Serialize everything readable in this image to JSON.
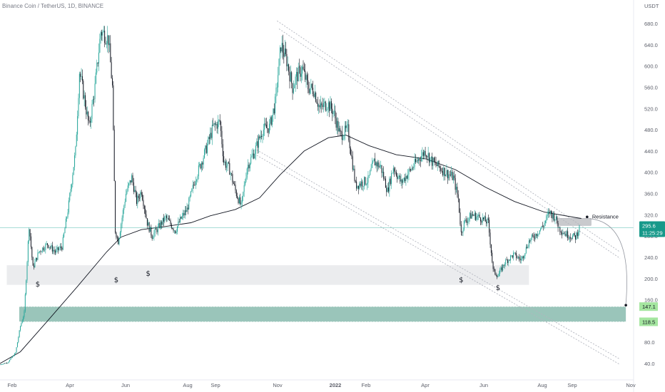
{
  "header": {
    "title": "Binance Coin / TetherUS, 1D, BINANCE"
  },
  "colors": {
    "up": "#26a69a",
    "down": "#131722",
    "ma": "#131722",
    "price_line": "#26a69a",
    "demand_zone": "#8fbfb3",
    "support_zone": "#e6e7ea",
    "resistance_box": "#c9cacd",
    "channel": "#b2b5be",
    "label_green": "#a5e6a0",
    "price_badge": "#17998a"
  },
  "chart_data": {
    "type": "candlestick",
    "title": "Binance Coin / TetherUS, 1D, BINANCE",
    "y_unit": "USDT",
    "ylim": [
      20,
      700
    ],
    "y_ticks": [
      "40.0",
      "80.0",
      "120.0",
      "160.0",
      "200.0",
      "240.0",
      "280.0",
      "320.0",
      "360.0",
      "400.0",
      "440.0",
      "480.0",
      "520.0",
      "560.0",
      "600.0",
      "640.0",
      "680.0"
    ],
    "x_ticks": [
      "Feb",
      "Apr",
      "Jun",
      "Aug",
      "Sep",
      "Nov",
      "2022",
      "Feb",
      "Apr",
      "Jun",
      "Aug",
      "Sep",
      "Nov"
    ],
    "x_range": [
      "2021-01-20",
      "2022-11-05"
    ],
    "price_path": [
      [
        "2021-01-20",
        38
      ],
      [
        "2021-01-28",
        42
      ],
      [
        "2021-02-05",
        60
      ],
      [
        "2021-02-10",
        110
      ],
      [
        "2021-02-14",
        135
      ],
      [
        "2021-02-19",
        300
      ],
      [
        "2021-02-23",
        220
      ],
      [
        "2021-03-01",
        250
      ],
      [
        "2021-03-10",
        265
      ],
      [
        "2021-03-18",
        250
      ],
      [
        "2021-03-25",
        260
      ],
      [
        "2021-04-01",
        340
      ],
      [
        "2021-04-05",
        400
      ],
      [
        "2021-04-08",
        440
      ],
      [
        "2021-04-12",
        590
      ],
      [
        "2021-04-16",
        550
      ],
      [
        "2021-04-22",
        485
      ],
      [
        "2021-04-28",
        560
      ],
      [
        "2021-05-04",
        665
      ],
      [
        "2021-05-08",
        660
      ],
      [
        "2021-05-12",
        650
      ],
      [
        "2021-05-16",
        560
      ],
      [
        "2021-05-19",
        290
      ],
      [
        "2021-05-22",
        270
      ],
      [
        "2021-05-30",
        360
      ],
      [
        "2021-06-05",
        390
      ],
      [
        "2021-06-10",
        345
      ],
      [
        "2021-06-15",
        365
      ],
      [
        "2021-06-21",
        305
      ],
      [
        "2021-06-26",
        280
      ],
      [
        "2021-07-02",
        295
      ],
      [
        "2021-07-10",
        315
      ],
      [
        "2021-07-20",
        290
      ],
      [
        "2021-07-25",
        310
      ],
      [
        "2021-08-01",
        330
      ],
      [
        "2021-08-10",
        390
      ],
      [
        "2021-08-20",
        440
      ],
      [
        "2021-08-28",
        485
      ],
      [
        "2021-09-04",
        495
      ],
      [
        "2021-09-08",
        420
      ],
      [
        "2021-09-14",
        405
      ],
      [
        "2021-09-20",
        365
      ],
      [
        "2021-09-26",
        335
      ],
      [
        "2021-10-02",
        410
      ],
      [
        "2021-10-10",
        440
      ],
      [
        "2021-10-18",
        480
      ],
      [
        "2021-10-25",
        485
      ],
      [
        "2021-10-31",
        530
      ],
      [
        "2021-11-06",
        640
      ],
      [
        "2021-11-12",
        610
      ],
      [
        "2021-11-18",
        560
      ],
      [
        "2021-11-22",
        580
      ],
      [
        "2021-11-28",
        595
      ],
      [
        "2021-12-04",
        560
      ],
      [
        "2021-12-10",
        555
      ],
      [
        "2021-12-16",
        520
      ],
      [
        "2021-12-24",
        530
      ],
      [
        "2021-12-30",
        515
      ],
      [
        "2022-01-06",
        470
      ],
      [
        "2022-01-14",
        480
      ],
      [
        "2022-01-22",
        375
      ],
      [
        "2022-01-28",
        380
      ],
      [
        "2022-02-04",
        385
      ],
      [
        "2022-02-10",
        420
      ],
      [
        "2022-02-17",
        410
      ],
      [
        "2022-02-24",
        365
      ],
      [
        "2022-03-02",
        410
      ],
      [
        "2022-03-10",
        380
      ],
      [
        "2022-03-18",
        400
      ],
      [
        "2022-03-28",
        425
      ],
      [
        "2022-04-04",
        440
      ],
      [
        "2022-04-11",
        420
      ],
      [
        "2022-04-18",
        410
      ],
      [
        "2022-04-25",
        400
      ],
      [
        "2022-05-03",
        390
      ],
      [
        "2022-05-08",
        350
      ],
      [
        "2022-05-11",
        285
      ],
      [
        "2022-05-14",
        305
      ],
      [
        "2022-05-22",
        320
      ],
      [
        "2022-05-30",
        315
      ],
      [
        "2022-06-08",
        305
      ],
      [
        "2022-06-13",
        215
      ],
      [
        "2022-06-18",
        205
      ],
      [
        "2022-06-25",
        230
      ],
      [
        "2022-07-04",
        245
      ],
      [
        "2022-07-12",
        235
      ],
      [
        "2022-07-20",
        270
      ],
      [
        "2022-07-28",
        285
      ],
      [
        "2022-08-04",
        300
      ],
      [
        "2022-08-10",
        325
      ],
      [
        "2022-08-16",
        315
      ],
      [
        "2022-08-20",
        295
      ],
      [
        "2022-08-26",
        285
      ],
      [
        "2022-09-01",
        280
      ],
      [
        "2022-09-06",
        278
      ],
      [
        "2022-09-10",
        295.6
      ]
    ],
    "moving_average": [
      [
        "2021-01-20",
        40
      ],
      [
        "2021-02-10",
        62
      ],
      [
        "2021-03-10",
        120
      ],
      [
        "2021-04-10",
        185
      ],
      [
        "2021-05-10",
        250
      ],
      [
        "2021-05-25",
        278
      ],
      [
        "2021-06-15",
        292
      ],
      [
        "2021-07-10",
        298
      ],
      [
        "2021-08-05",
        305
      ],
      [
        "2021-08-25",
        318
      ],
      [
        "2021-09-20",
        330
      ],
      [
        "2021-10-15",
        352
      ],
      [
        "2021-11-05",
        395
      ],
      [
        "2021-11-30",
        440
      ],
      [
        "2021-12-25",
        465
      ],
      [
        "2022-01-12",
        470
      ],
      [
        "2022-02-05",
        450
      ],
      [
        "2022-03-05",
        433
      ],
      [
        "2022-04-05",
        425
      ],
      [
        "2022-05-05",
        405
      ],
      [
        "2022-06-05",
        372
      ],
      [
        "2022-07-05",
        345
      ],
      [
        "2022-08-05",
        325
      ],
      [
        "2022-09-05",
        315
      ],
      [
        "2022-09-12",
        313
      ]
    ],
    "current_price": "295.6",
    "countdown": "11:25:29",
    "price_labels": [
      {
        "value": 147.1,
        "label": "147.1"
      },
      {
        "value": 118.5,
        "label": "118.5"
      }
    ],
    "zones": {
      "demand": {
        "from": 118.5,
        "to": 147.1,
        "x_from": "2021-01-20",
        "x_to": "2022-10-28"
      },
      "support": {
        "from": 188,
        "to": 225,
        "x_from": "2021-01-27",
        "x_to": "2022-07-20"
      },
      "resistance": {
        "from": 300,
        "to": 313,
        "x_from": "2022-08-18",
        "x_to": "2022-09-22"
      }
    },
    "channel_lines": [
      [
        [
          "2021-11-02",
          685
        ],
        [
          "2022-10-22",
          250
        ]
      ],
      [
        [
          "2021-11-04",
          670
        ],
        [
          "2022-10-22",
          238
        ]
      ],
      [
        [
          "2021-10-12",
          442
        ],
        [
          "2022-10-22",
          48
        ]
      ],
      [
        [
          "2021-10-12",
          432
        ],
        [
          "2022-10-22",
          38
        ]
      ]
    ],
    "annotations": [
      {
        "text": "Resistance",
        "date": "2022-09-18",
        "value": 320
      },
      {
        "text": "$",
        "date": "2021-02-28",
        "value": 185
      },
      {
        "text": "$",
        "date": "2021-05-20",
        "value": 193
      },
      {
        "text": "$",
        "date": "2021-06-22",
        "value": 205
      },
      {
        "text": "$",
        "date": "2022-05-11",
        "value": 193
      },
      {
        "text": "$",
        "date": "2022-06-18",
        "value": 178
      }
    ],
    "projection_arrow": {
      "from": [
        "2022-09-18",
        318
      ],
      "to": [
        "2022-10-28",
        147.1
      ]
    }
  }
}
